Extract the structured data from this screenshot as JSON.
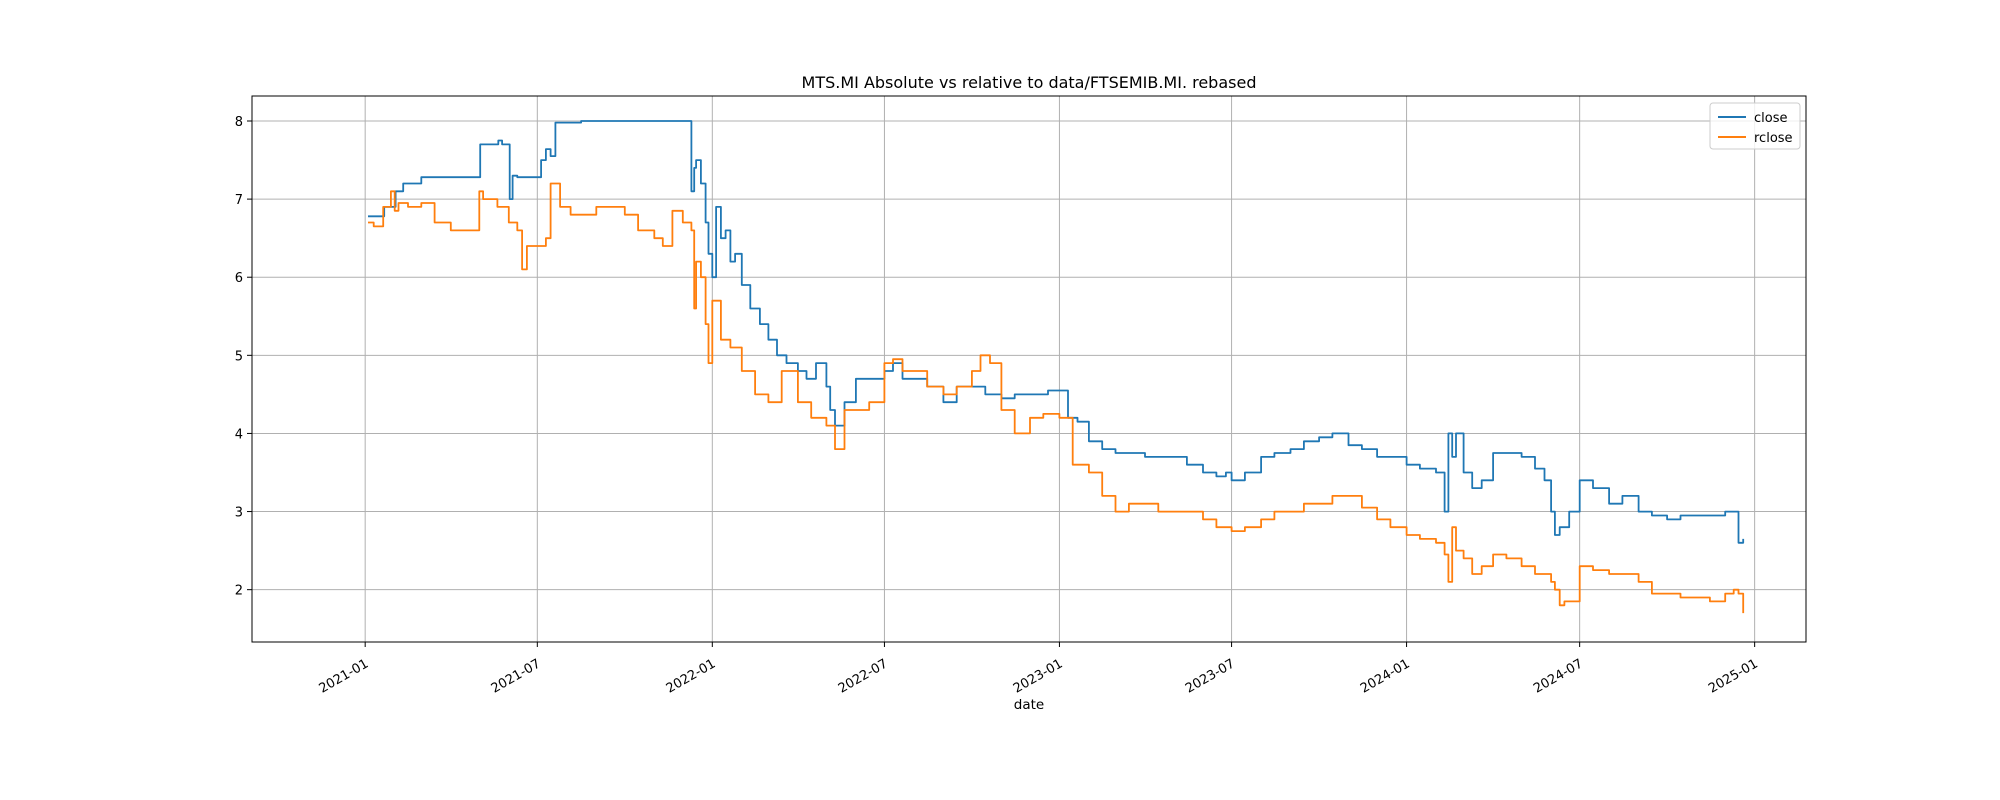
{
  "chart_data": {
    "type": "line",
    "title": "MTS.MI Absolute vs relative to data/FTSEMIB.MI. rebased",
    "xlabel": "date",
    "ylabel": "",
    "xlim": [
      "2020-09-04",
      "2025-02-24"
    ],
    "ylim": [
      1.33,
      8.32
    ],
    "x_ticks": [
      "2021-01",
      "2021-07",
      "2022-01",
      "2022-07",
      "2023-01",
      "2023-07",
      "2024-01",
      "2024-07",
      "2025-01"
    ],
    "y_ticks": [
      2,
      3,
      4,
      5,
      6,
      7,
      8
    ],
    "grid": true,
    "legend": "top-right",
    "colors": {
      "close": "#1f77b4",
      "rclose": "#ff7f0e"
    },
    "series": [
      {
        "name": "close",
        "x": [
          "2021-01-04",
          "2021-01-20",
          "2021-01-21",
          "2021-02-01",
          "2021-02-02",
          "2021-02-10",
          "2021-02-15",
          "2021-03-01",
          "2021-04-01",
          "2021-05-01",
          "2021-05-02",
          "2021-05-20",
          "2021-05-21",
          "2021-05-25",
          "2021-06-01",
          "2021-06-02",
          "2021-06-05",
          "2021-06-10",
          "2021-07-01",
          "2021-07-05",
          "2021-07-10",
          "2021-07-15",
          "2021-07-20",
          "2021-08-15",
          "2021-08-16",
          "2021-09-15",
          "2021-10-15",
          "2021-11-15",
          "2021-12-09",
          "2021-12-10",
          "2021-12-13",
          "2021-12-15",
          "2021-12-20",
          "2021-12-25",
          "2021-12-28",
          "2022-01-01",
          "2022-01-05",
          "2022-01-10",
          "2022-01-15",
          "2022-01-20",
          "2022-01-25",
          "2022-02-01",
          "2022-02-10",
          "2022-02-20",
          "2022-03-01",
          "2022-03-10",
          "2022-03-20",
          "2022-04-01",
          "2022-04-10",
          "2022-04-20",
          "2022-05-01",
          "2022-05-05",
          "2022-05-10",
          "2022-05-20",
          "2022-06-01",
          "2022-06-15",
          "2022-07-01",
          "2022-07-10",
          "2022-07-20",
          "2022-08-01",
          "2022-08-15",
          "2022-09-01",
          "2022-09-15",
          "2022-10-01",
          "2022-10-15",
          "2022-11-01",
          "2022-11-15",
          "2022-12-01",
          "2022-12-20",
          "2022-12-28",
          "2023-01-05",
          "2023-01-10",
          "2023-01-20",
          "2023-02-01",
          "2023-02-15",
          "2023-03-01",
          "2023-03-15",
          "2023-04-01",
          "2023-04-15",
          "2023-05-01",
          "2023-05-15",
          "2023-06-01",
          "2023-06-15",
          "2023-06-25",
          "2023-07-01",
          "2023-07-15",
          "2023-08-01",
          "2023-08-15",
          "2023-09-01",
          "2023-09-15",
          "2023-10-01",
          "2023-10-15",
          "2023-11-01",
          "2023-11-15",
          "2023-12-01",
          "2023-12-15",
          "2024-01-01",
          "2024-01-15",
          "2024-02-01",
          "2024-02-10",
          "2024-02-14",
          "2024-02-18",
          "2024-02-22",
          "2024-03-01",
          "2024-03-10",
          "2024-03-20",
          "2024-04-01",
          "2024-04-15",
          "2024-05-01",
          "2024-05-15",
          "2024-05-25",
          "2024-06-01",
          "2024-06-05",
          "2024-06-10",
          "2024-06-20",
          "2024-07-01",
          "2024-07-15",
          "2024-08-01",
          "2024-08-15",
          "2024-09-01",
          "2024-09-15",
          "2024-10-01",
          "2024-10-15",
          "2024-11-01",
          "2024-11-15",
          "2024-12-01",
          "2024-12-10",
          "2024-12-15",
          "2024-12-20"
        ],
        "y": [
          6.78,
          6.78,
          6.9,
          6.9,
          7.1,
          7.2,
          7.2,
          7.28,
          7.28,
          7.28,
          7.7,
          7.7,
          7.75,
          7.7,
          7.7,
          7.0,
          7.3,
          7.28,
          7.28,
          7.5,
          7.64,
          7.55,
          7.98,
          7.98,
          8.0,
          8.0,
          8.0,
          8.0,
          8.0,
          7.1,
          7.4,
          7.5,
          7.2,
          6.7,
          6.3,
          6.0,
          6.9,
          6.5,
          6.6,
          6.2,
          6.3,
          5.9,
          5.6,
          5.4,
          5.2,
          5.0,
          4.9,
          4.8,
          4.7,
          4.9,
          4.6,
          4.3,
          4.1,
          4.4,
          4.7,
          4.7,
          4.8,
          4.9,
          4.7,
          4.7,
          4.6,
          4.4,
          4.6,
          4.6,
          4.5,
          4.45,
          4.5,
          4.5,
          4.55,
          4.55,
          4.55,
          4.2,
          4.15,
          3.9,
          3.8,
          3.75,
          3.75,
          3.7,
          3.7,
          3.7,
          3.6,
          3.5,
          3.45,
          3.5,
          3.4,
          3.5,
          3.7,
          3.75,
          3.8,
          3.9,
          3.95,
          4.0,
          3.85,
          3.8,
          3.7,
          3.7,
          3.6,
          3.55,
          3.5,
          3.0,
          4.0,
          3.7,
          4.0,
          3.5,
          3.3,
          3.4,
          3.75,
          3.75,
          3.7,
          3.55,
          3.4,
          3.0,
          2.7,
          2.8,
          3.0,
          3.4,
          3.3,
          3.1,
          3.2,
          3.0,
          2.95,
          2.9,
          2.95,
          2.95,
          2.95,
          3.0,
          3.0,
          2.6,
          2.65
        ]
      },
      {
        "name": "rclose",
        "x": [
          "2021-01-04",
          "2021-01-10",
          "2021-01-20",
          "2021-01-28",
          "2021-02-01",
          "2021-02-05",
          "2021-02-15",
          "2021-03-01",
          "2021-03-15",
          "2021-04-01",
          "2021-04-15",
          "2021-05-01",
          "2021-05-05",
          "2021-05-20",
          "2021-06-01",
          "2021-06-10",
          "2021-06-15",
          "2021-06-20",
          "2021-07-01",
          "2021-07-10",
          "2021-07-15",
          "2021-07-25",
          "2021-08-05",
          "2021-08-20",
          "2021-09-01",
          "2021-09-15",
          "2021-10-01",
          "2021-10-15",
          "2021-11-01",
          "2021-11-10",
          "2021-11-20",
          "2021-12-01",
          "2021-12-10",
          "2021-12-13",
          "2021-12-15",
          "2021-12-20",
          "2021-12-25",
          "2021-12-28",
          "2022-01-01",
          "2022-01-10",
          "2022-01-20",
          "2022-02-01",
          "2022-02-15",
          "2022-03-01",
          "2022-03-15",
          "2022-04-01",
          "2022-04-15",
          "2022-05-01",
          "2022-05-10",
          "2022-05-20",
          "2022-06-01",
          "2022-06-15",
          "2022-07-01",
          "2022-07-10",
          "2022-07-20",
          "2022-08-01",
          "2022-08-15",
          "2022-09-01",
          "2022-09-15",
          "2022-10-01",
          "2022-10-10",
          "2022-10-20",
          "2022-11-01",
          "2022-11-15",
          "2022-12-01",
          "2022-12-15",
          "2023-01-01",
          "2023-01-15",
          "2023-02-01",
          "2023-02-15",
          "2023-03-01",
          "2023-03-15",
          "2023-04-01",
          "2023-04-15",
          "2023-05-01",
          "2023-05-15",
          "2023-06-01",
          "2023-06-15",
          "2023-07-01",
          "2023-07-15",
          "2023-08-01",
          "2023-08-15",
          "2023-09-01",
          "2023-09-15",
          "2023-10-01",
          "2023-10-15",
          "2023-11-01",
          "2023-11-15",
          "2023-12-01",
          "2023-12-15",
          "2024-01-01",
          "2024-01-15",
          "2024-02-01",
          "2024-02-10",
          "2024-02-14",
          "2024-02-18",
          "2024-02-22",
          "2024-03-01",
          "2024-03-10",
          "2024-03-20",
          "2024-04-01",
          "2024-04-15",
          "2024-05-01",
          "2024-05-15",
          "2024-06-01",
          "2024-06-05",
          "2024-06-10",
          "2024-06-15",
          "2024-07-01",
          "2024-07-15",
          "2024-08-01",
          "2024-08-15",
          "2024-09-01",
          "2024-09-15",
          "2024-10-01",
          "2024-10-15",
          "2024-11-01",
          "2024-11-15",
          "2024-12-01",
          "2024-12-10",
          "2024-12-15",
          "2024-12-20"
        ],
        "y": [
          6.7,
          6.65,
          6.9,
          7.1,
          6.85,
          6.95,
          6.9,
          6.95,
          6.7,
          6.6,
          6.6,
          7.1,
          7.0,
          6.9,
          6.7,
          6.6,
          6.1,
          6.4,
          6.4,
          6.5,
          7.2,
          6.9,
          6.8,
          6.8,
          6.9,
          6.9,
          6.8,
          6.6,
          6.5,
          6.4,
          6.85,
          6.7,
          6.6,
          5.6,
          6.2,
          6.0,
          5.4,
          4.9,
          5.7,
          5.2,
          5.1,
          4.8,
          4.5,
          4.4,
          4.8,
          4.4,
          4.2,
          4.1,
          3.8,
          4.3,
          4.3,
          4.4,
          4.9,
          4.95,
          4.8,
          4.8,
          4.6,
          4.5,
          4.6,
          4.8,
          5.0,
          4.9,
          4.3,
          4.0,
          4.2,
          4.25,
          4.2,
          3.6,
          3.5,
          3.2,
          3.0,
          3.1,
          3.1,
          3.0,
          3.0,
          3.0,
          2.9,
          2.8,
          2.75,
          2.8,
          2.9,
          3.0,
          3.0,
          3.1,
          3.1,
          3.2,
          3.2,
          3.05,
          2.9,
          2.8,
          2.7,
          2.65,
          2.6,
          2.45,
          2.1,
          2.8,
          2.5,
          2.4,
          2.2,
          2.3,
          2.45,
          2.4,
          2.3,
          2.2,
          2.1,
          2.0,
          1.8,
          1.85,
          2.3,
          2.25,
          2.2,
          2.2,
          2.1,
          1.95,
          1.95,
          1.9,
          1.9,
          1.85,
          1.95,
          2.0,
          1.95,
          1.7
        ]
      }
    ]
  }
}
